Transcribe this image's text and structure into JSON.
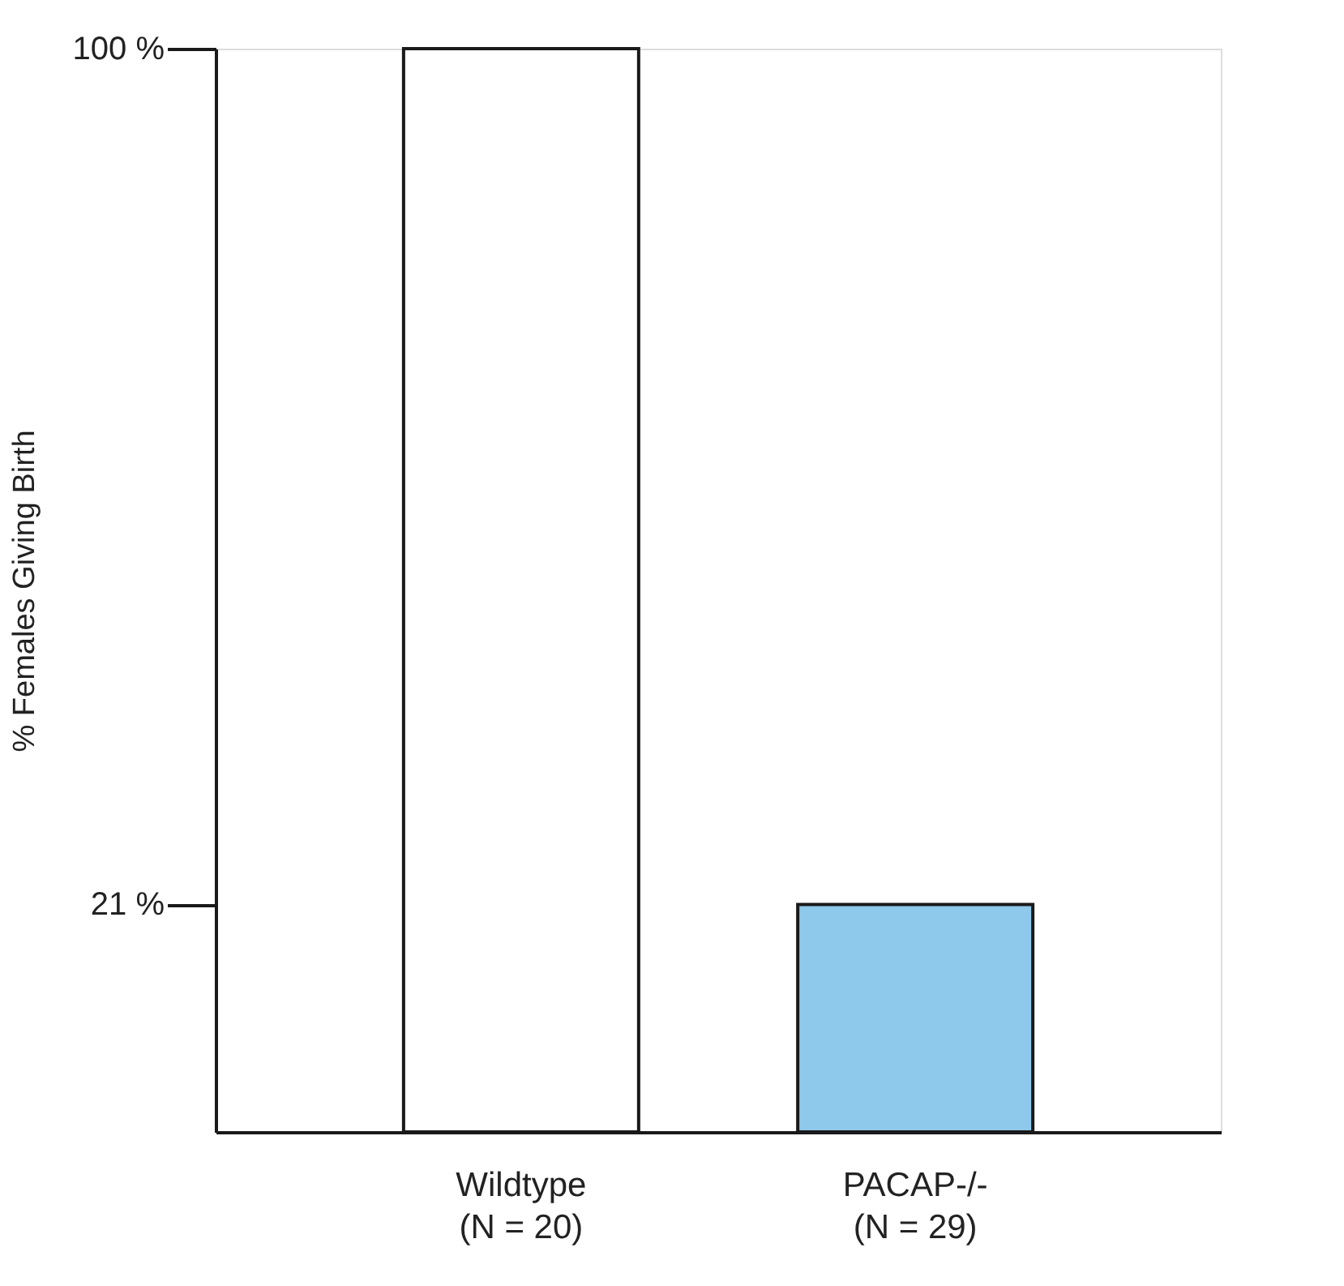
{
  "chart_data": {
    "type": "bar",
    "categories": [
      "Wildtype\n(N = 20)",
      "PACAP-/-\n(N = 29)"
    ],
    "values": [
      100,
      21
    ],
    "colors": [
      "#ffffff",
      "#8ec8ea"
    ],
    "ylabel": "% Females Giving Birth",
    "ylim": [
      0,
      100
    ],
    "yticks": [
      {
        "value": 100,
        "label": "100 %"
      },
      {
        "value": 21,
        "label": "21 %"
      }
    ],
    "grid": false
  }
}
